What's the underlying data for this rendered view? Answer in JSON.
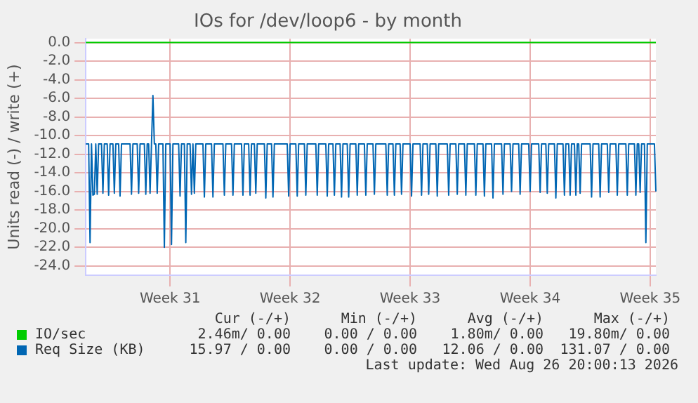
{
  "chart_data": {
    "type": "line",
    "title": "IOs for /dev/loop6 - by month",
    "ylabel": "Units read (-) / write (+)",
    "categories": [
      null,
      null,
      null,
      null,
      null,
      null,
      null,
      null,
      null,
      null,
      null,
      null,
      null,
      null,
      null,
      null,
      null,
      null,
      null,
      null,
      null,
      null,
      null,
      null,
      null,
      null,
      null,
      null,
      null,
      null,
      null,
      null,
      null,
      null,
      null,
      null,
      null,
      null,
      null,
      null,
      null,
      null,
      null,
      null,
      null,
      null,
      null,
      null,
      null,
      null,
      null,
      null,
      null,
      null,
      null,
      null,
      null,
      null,
      null,
      "Week 31",
      null,
      null,
      null,
      null,
      null,
      null,
      null,
      null,
      null,
      null,
      null,
      null,
      null,
      null,
      null,
      null,
      null,
      null,
      null,
      null,
      null,
      null,
      null,
      null,
      null,
      null,
      null,
      null,
      null,
      null,
      null,
      null,
      null,
      null,
      null,
      null,
      null,
      null,
      null,
      null,
      null,
      null,
      null,
      null,
      null,
      null,
      null,
      null,
      null,
      null,
      null,
      null,
      null,
      null,
      null,
      null,
      null,
      null,
      null,
      null,
      null,
      null,
      null,
      null,
      null,
      null,
      null,
      null,
      null,
      null,
      null,
      null,
      null,
      null,
      null,
      null,
      null,
      null,
      null,
      null,
      null,
      null,
      null,
      "Week 32",
      null,
      null,
      null,
      null,
      null,
      null,
      null,
      null,
      null,
      null,
      null,
      null,
      null,
      null,
      null,
      null,
      null,
      null,
      null,
      null,
      null,
      null,
      null,
      null,
      null,
      null,
      null,
      null,
      null,
      null,
      null,
      null,
      null,
      null,
      null,
      null,
      null,
      null,
      null,
      null,
      null,
      null,
      null,
      null,
      null,
      null,
      null,
      null,
      null,
      null,
      null,
      null,
      null,
      null,
      null,
      null,
      null,
      null,
      null,
      null,
      null,
      null,
      null,
      null,
      null,
      null,
      null,
      null,
      null,
      null,
      null,
      null,
      null,
      null,
      null,
      null,
      null,
      null,
      null,
      null,
      null,
      null,
      null,
      "Week 33",
      null,
      null,
      null,
      null,
      null,
      null,
      null,
      null,
      null,
      null,
      null,
      null,
      null,
      null,
      null,
      null,
      null,
      null,
      null,
      null,
      null,
      null,
      null,
      null,
      null,
      null,
      null,
      null,
      null,
      null,
      null,
      null,
      null,
      null,
      null,
      null,
      null,
      null,
      null,
      null,
      null,
      null,
      null,
      null,
      null,
      null,
      null,
      null,
      null,
      null,
      null,
      null,
      null,
      null,
      null,
      null,
      null,
      null,
      null,
      null,
      null,
      null,
      null,
      null,
      null,
      null,
      null,
      null,
      null,
      null,
      null,
      null,
      null,
      null,
      null,
      null,
      null,
      null,
      null,
      null,
      null,
      null,
      null,
      "Week 34",
      null,
      null,
      null,
      null,
      null,
      null,
      null,
      null,
      null,
      null,
      null,
      null,
      null,
      null,
      null,
      null,
      null,
      null,
      null,
      null,
      null,
      null,
      null,
      null,
      null,
      null,
      null,
      null,
      null,
      null,
      null,
      null,
      null,
      null,
      null,
      null,
      null,
      null,
      null,
      null,
      null,
      null,
      null,
      null,
      null,
      null,
      null,
      null,
      null,
      null,
      null,
      null,
      null,
      null,
      null,
      null,
      null,
      null,
      null,
      null,
      null,
      null,
      null,
      null,
      null,
      null,
      null,
      null,
      null,
      null,
      null,
      null,
      null,
      null,
      null,
      null,
      null,
      null,
      null,
      null,
      null,
      null,
      null,
      "Week 35",
      null,
      null,
      null,
      null
    ],
    "ylim": [
      -25,
      0.4
    ],
    "yticks": [
      {
        "value": -24,
        "label": "-24.0"
      },
      {
        "value": -22,
        "label": "-22.0"
      },
      {
        "value": -20,
        "label": "-20.0"
      },
      {
        "value": -18,
        "label": "-18.0"
      },
      {
        "value": -16,
        "label": "-16.0"
      },
      {
        "value": -14,
        "label": "-14.0"
      },
      {
        "value": -12,
        "label": "-12.0"
      },
      {
        "value": -10,
        "label": "-10.0"
      },
      {
        "value": -8,
        "label": "-8.0"
      },
      {
        "value": -6,
        "label": "-6.0"
      },
      {
        "value": -4,
        "label": "-4.0"
      },
      {
        "value": -2,
        "label": "-2.0"
      },
      {
        "value": 0,
        "label": "0.0"
      }
    ],
    "grid": true,
    "legend": "bottom",
    "series": [
      {
        "name": "IO/sec",
        "color": "#00cc00",
        "values": [
          0,
          0,
          0,
          0,
          0,
          0,
          0,
          0,
          0,
          0,
          0,
          0,
          0,
          0,
          0,
          0,
          0,
          0,
          0,
          0,
          0,
          0,
          0,
          0,
          0,
          0,
          0,
          0,
          0,
          0,
          0,
          0,
          0,
          0,
          0,
          0,
          0,
          0,
          0,
          0,
          0,
          0,
          0,
          0,
          0,
          0,
          0,
          0,
          0,
          0,
          0,
          0,
          0,
          0,
          0,
          0,
          0,
          0,
          0,
          0,
          0,
          0,
          0,
          0,
          0,
          0,
          0,
          0,
          0,
          0,
          0,
          0,
          0,
          0,
          0,
          0,
          0,
          0,
          0,
          0,
          0,
          0,
          0,
          0,
          0,
          0,
          0,
          0,
          0,
          0,
          0,
          0,
          0,
          0,
          0,
          0,
          0,
          0,
          0,
          0,
          0,
          0,
          0,
          0,
          0,
          0,
          0,
          0,
          0,
          0,
          0,
          0,
          0,
          0,
          0,
          0,
          0,
          0,
          0,
          0,
          0,
          0,
          0,
          0,
          0,
          0,
          0,
          0,
          0,
          0,
          0,
          0,
          0,
          0,
          0,
          0,
          0,
          0,
          0,
          0,
          0,
          0,
          0,
          0,
          0,
          0,
          0,
          0,
          0,
          0,
          0,
          0,
          0,
          0,
          0,
          0,
          0,
          0,
          0,
          0,
          0,
          0,
          0,
          0,
          0,
          0,
          0,
          0,
          0,
          0,
          0,
          0,
          0,
          0,
          0,
          0,
          0,
          0,
          0,
          0,
          0,
          0,
          0,
          0,
          0,
          0,
          0,
          0,
          0,
          0,
          0,
          0,
          0,
          0,
          0,
          0,
          0,
          0,
          0,
          0,
          0,
          0,
          0,
          0,
          0,
          0,
          0,
          0,
          0,
          0,
          0,
          0,
          0,
          0,
          0,
          0,
          0,
          0,
          0,
          0,
          0,
          0,
          0,
          0,
          0,
          0,
          0,
          0,
          0,
          0,
          0,
          0,
          0,
          0,
          0,
          0,
          0,
          0,
          0,
          0,
          0,
          0,
          0,
          0,
          0,
          0,
          0,
          0,
          0,
          0,
          0,
          0,
          0,
          0,
          0,
          0,
          0,
          0,
          0,
          0,
          0,
          0,
          0,
          0,
          0,
          0,
          0,
          0,
          0,
          0,
          0,
          0,
          0,
          0,
          0,
          0,
          0,
          0,
          0,
          0,
          0,
          0,
          0,
          0,
          0,
          0,
          0,
          0,
          0,
          0,
          0,
          0,
          0,
          0,
          0,
          0,
          0,
          0,
          0,
          0,
          0,
          0,
          0,
          0,
          0,
          0,
          0,
          0,
          0,
          0,
          0,
          0,
          0,
          0,
          0,
          0,
          0,
          0,
          0,
          0,
          0,
          0,
          0,
          0,
          0,
          0,
          0,
          0,
          0,
          0,
          0,
          0,
          0,
          0,
          0,
          0,
          0,
          0,
          0,
          0,
          0,
          0,
          0,
          0,
          0,
          0,
          0,
          0,
          0,
          0,
          0,
          0,
          0,
          0,
          0,
          0,
          0,
          0,
          0,
          0,
          0,
          0,
          0,
          0,
          0,
          0,
          0,
          0,
          0,
          0,
          0,
          0,
          0,
          0,
          0,
          0,
          0,
          0,
          0,
          0,
          0,
          0,
          0,
          0,
          0,
          0,
          0,
          0,
          0,
          0,
          0,
          0,
          0,
          0,
          0,
          0,
          0,
          0,
          0,
          0
        ]
      },
      {
        "name": "Req Size (KB)",
        "color": "#0066b3",
        "values": [
          -10.9,
          -10.9,
          -10.9,
          -21.5,
          -10.9,
          -16.4,
          -16.3,
          -10.9,
          -16.3,
          -10.9,
          -10.9,
          -10.9,
          -16.2,
          -10.9,
          -10.9,
          -10.9,
          -16.4,
          -10.9,
          -10.9,
          -10.9,
          -16.2,
          -10.9,
          -10.9,
          -10.9,
          -16.5,
          -10.9,
          -10.9,
          -10.9,
          -10.9,
          -10.9,
          -10.9,
          -10.9,
          -16.3,
          -10.9,
          -10.9,
          -10.9,
          -10.9,
          -16.2,
          -10.9,
          -10.9,
          -10.9,
          -10.9,
          -16.3,
          -10.9,
          -10.9,
          -16.2,
          -10.9,
          -5.7,
          -10.9,
          -10.9,
          -16.2,
          -10.9,
          -10.9,
          -10.9,
          -10.9,
          -22.0,
          -10.9,
          -10.9,
          -10.9,
          -10.9,
          -21.7,
          -10.9,
          -10.9,
          -10.9,
          -10.9,
          -10.9,
          -16.5,
          -10.9,
          -10.9,
          -10.9,
          -21.5,
          -10.9,
          -10.9,
          -10.9,
          -16.3,
          -10.9,
          -16.2,
          -10.9,
          -10.9,
          -10.9,
          -10.9,
          -10.9,
          -10.9,
          -16.6,
          -10.9,
          -10.9,
          -10.9,
          -10.9,
          -10.9,
          -16.6,
          -10.9,
          -10.9,
          -10.9,
          -10.9,
          -10.9,
          -10.9,
          -10.9,
          -16.4,
          -10.9,
          -10.9,
          -10.9,
          -10.9,
          -10.9,
          -16.4,
          -10.9,
          -10.9,
          -10.9,
          -10.9,
          -10.9,
          -10.9,
          -16.4,
          -10.9,
          -10.9,
          -10.9,
          -10.9,
          -16.4,
          -10.9,
          -10.9,
          -10.9,
          -16.2,
          -10.9,
          -10.9,
          -10.9,
          -10.9,
          -10.9,
          -10.9,
          -16.7,
          -10.9,
          -10.9,
          -10.9,
          -10.9,
          -16.6,
          -10.9,
          -10.9,
          -10.9,
          -10.9,
          -10.9,
          -10.9,
          -10.9,
          -10.9,
          -10.9,
          -10.9,
          -16.5,
          -10.9,
          -10.9,
          -10.9,
          -10.9,
          -10.9,
          -16.5,
          -10.9,
          -10.9,
          -10.9,
          -10.9,
          -10.9,
          -16.4,
          -10.9,
          -10.9,
          -10.9,
          -10.9,
          -10.9,
          -10.9,
          -10.9,
          -16.4,
          -10.9,
          -10.9,
          -10.9,
          -10.9,
          -10.9,
          -10.9,
          -16.5,
          -10.9,
          -10.9,
          -10.9,
          -10.9,
          -16.4,
          -10.9,
          -10.9,
          -10.9,
          -10.9,
          -16.6,
          -10.9,
          -10.9,
          -10.9,
          -10.9,
          -16.6,
          -10.9,
          -10.9,
          -10.9,
          -10.9,
          -10.9,
          -16.4,
          -10.9,
          -10.9,
          -10.9,
          -10.9,
          -10.9,
          -16.4,
          -10.9,
          -10.9,
          -10.9,
          -10.9,
          -10.9,
          -16.3,
          -10.9,
          -10.9,
          -10.9,
          -10.9,
          -10.9,
          -10.9,
          -10.9,
          -10.9,
          -16.4,
          -10.9,
          -10.9,
          -10.9,
          -10.9,
          -16.4,
          -10.9,
          -10.9,
          -10.9,
          -10.9,
          -16.3,
          -10.9,
          -10.9,
          -10.9,
          -10.9,
          -10.9,
          -10.9,
          -16.5,
          -10.9,
          -10.9,
          -10.9,
          -10.9,
          -10.9,
          -10.9,
          -16.4,
          -10.9,
          -10.9,
          -10.9,
          -10.9,
          -16.3,
          -10.9,
          -10.9,
          -10.9,
          -10.9,
          -10.9,
          -16.5,
          -10.9,
          -10.9,
          -10.9,
          -10.9,
          -10.9,
          -10.9,
          -10.9,
          -16.4,
          -10.9,
          -10.9,
          -10.9,
          -10.9,
          -10.9,
          -16.3,
          -10.9,
          -10.9,
          -10.9,
          -10.9,
          -10.9,
          -16.4,
          -10.9,
          -10.9,
          -10.9,
          -10.9,
          -10.9,
          -10.9,
          -16.4,
          -10.9,
          -10.9,
          -10.9,
          -10.9,
          -10.9,
          -16.5,
          -10.9,
          -10.9,
          -10.9,
          -10.9,
          -10.9,
          -16.7,
          -10.9,
          -10.9,
          -10.9,
          -10.9,
          -10.9,
          -10.9,
          -16.3,
          -10.9,
          -10.9,
          -10.9,
          -10.9,
          -10.9,
          -16.0,
          -10.9,
          -10.9,
          -10.9,
          -10.9,
          -10.9,
          -16.3,
          -10.9,
          -10.9,
          -10.9,
          -10.9,
          -10.9,
          -10.9,
          -16.0,
          -10.9,
          -10.9,
          -10.9,
          -10.9,
          -10.9,
          -10.9,
          -16.1,
          -10.9,
          -10.9,
          -10.9,
          -10.9,
          -16.2,
          -10.9,
          -10.9,
          -10.9,
          -10.9,
          -10.9,
          -16.7,
          -10.9,
          -10.9,
          -10.9,
          -10.9,
          -10.9,
          -16.4,
          -10.9,
          -10.9,
          -10.9,
          -16.4,
          -10.9,
          -10.9,
          -10.9,
          -16.4,
          -10.9,
          -10.9,
          -16.2,
          -10.9,
          -10.9,
          -10.9,
          -10.9,
          -10.9,
          -10.9,
          -10.9,
          -16.6,
          -10.9,
          -10.9,
          -10.9,
          -10.9,
          -10.9,
          -16.6,
          -10.9,
          -10.9,
          -10.9,
          -10.9,
          -10.9,
          -16.1,
          -10.9,
          -10.9,
          -10.9,
          -10.9,
          -10.9,
          -16.4,
          -10.9,
          -10.9,
          -10.9,
          -10.9,
          -10.9,
          -10.9,
          -16.4,
          -10.9,
          -10.9,
          -10.9,
          -10.9,
          -10.9,
          -16.4,
          -10.9,
          -10.9,
          -16.1,
          -10.9,
          -10.9,
          -10.9,
          -21.5,
          -10.9,
          -10.9,
          -10.9,
          -10.9,
          -10.9,
          -10.9,
          -16.0
        ]
      }
    ],
    "annotations": [
      "Cur (-/+)",
      "Min (-/+)",
      "Avg (-/+)",
      "Max (-/+)",
      "2.46m/ 0.00",
      "0.00 / 0.00",
      "1.80m/ 0.00",
      "19.80m/ 0.00",
      "15.97 / 0.00",
      "0.00 / 0.00",
      "12.06 / 0.00",
      "131.07 / 0.00",
      "Last update: Wed Aug 26 20:00:13 2026"
    ]
  }
}
